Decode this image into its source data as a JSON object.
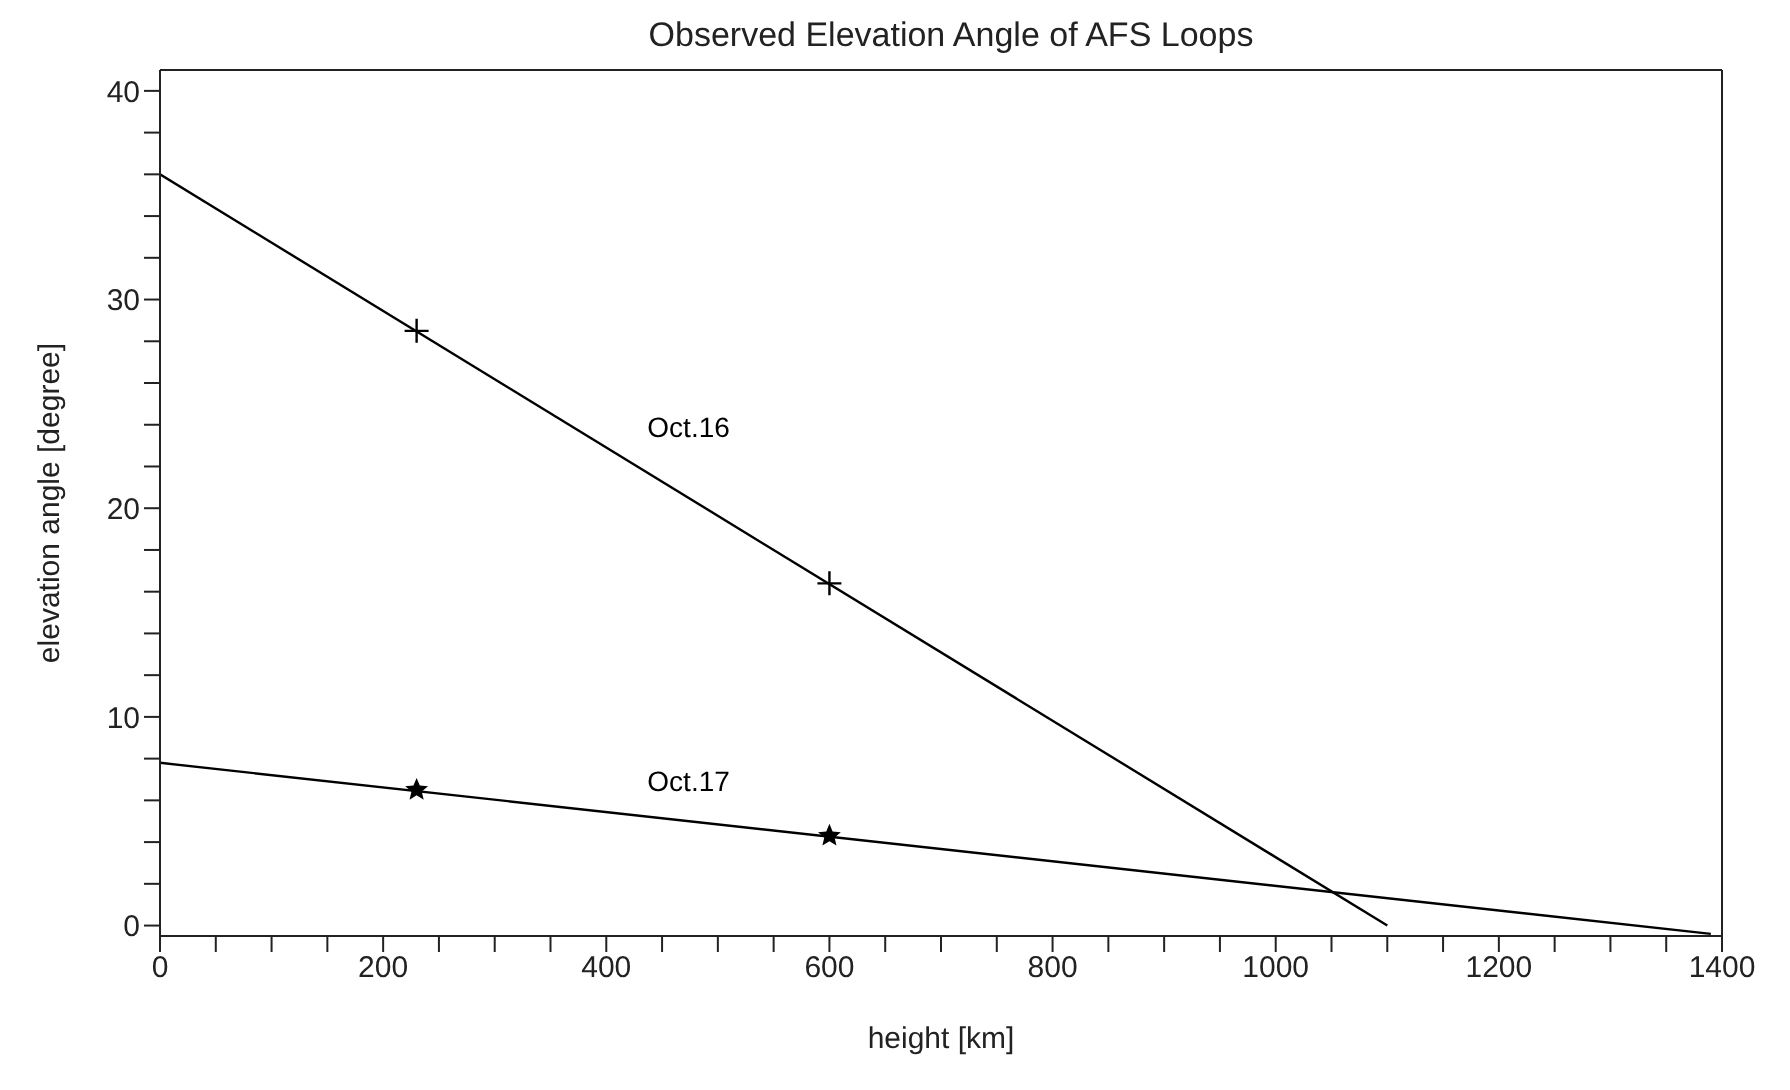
{
  "chart_data": {
    "type": "line",
    "title": "Observed Elevation Angle of AFS Loops",
    "xlabel": "height [km]",
    "ylabel": "elevation angle [degree]",
    "xlim": [
      0,
      1400
    ],
    "ylim": [
      -0.5,
      41
    ],
    "xticks": [
      0,
      {
        "value": 50,
        "label": null
      },
      {
        "value": 100,
        "label": null
      },
      {
        "value": 150,
        "label": null
      },
      200,
      {
        "value": 250,
        "label": null
      },
      {
        "value": 300,
        "label": null
      },
      {
        "value": 350,
        "label": null
      },
      400,
      {
        "value": 450,
        "label": null
      },
      {
        "value": 500,
        "label": null
      },
      {
        "value": 550,
        "label": null
      },
      600,
      {
        "value": 650,
        "label": null
      },
      {
        "value": 700,
        "label": null
      },
      {
        "value": 750,
        "label": null
      },
      800,
      {
        "value": 850,
        "label": null
      },
      {
        "value": 900,
        "label": null
      },
      {
        "value": 950,
        "label": null
      },
      1000,
      {
        "value": 1050,
        "label": null
      },
      {
        "value": 1100,
        "label": null
      },
      {
        "value": 1150,
        "label": null
      },
      1200,
      {
        "value": 1250,
        "label": null
      },
      {
        "value": 1300,
        "label": null
      },
      {
        "value": 1350,
        "label": null
      },
      1400
    ],
    "yticks": [
      0,
      {
        "value": 2,
        "label": null
      },
      {
        "value": 4,
        "label": null
      },
      {
        "value": 6,
        "label": null
      },
      {
        "value": 8,
        "label": null
      },
      10,
      {
        "value": 12,
        "label": null
      },
      {
        "value": 14,
        "label": null
      },
      {
        "value": 16,
        "label": null
      },
      {
        "value": 18,
        "label": null
      },
      20,
      {
        "value": 22,
        "label": null
      },
      {
        "value": 24,
        "label": null
      },
      {
        "value": 26,
        "label": null
      },
      {
        "value": 28,
        "label": null
      },
      30,
      {
        "value": 32,
        "label": null
      },
      {
        "value": 34,
        "label": null
      },
      {
        "value": 36,
        "label": null
      },
      {
        "value": 38,
        "label": null
      },
      40
    ],
    "series": [
      {
        "name": "Oct.16",
        "color": "#000000",
        "x": [
          0,
          1100
        ],
        "values": [
          36,
          0
        ],
        "marker": "none",
        "line_style": "solid"
      },
      {
        "type": "scatter",
        "color": "#000000",
        "x": [
          230,
          600
        ],
        "values": [
          28.5,
          16.4
        ],
        "marker": "cross"
      },
      {
        "name": "Oct.17",
        "color": "#000000",
        "x": [
          0,
          1390
        ],
        "values": [
          7.8,
          -0.4
        ],
        "marker": "none",
        "line_style": "solid"
      },
      {
        "type": "scatter",
        "color": "#000000",
        "x": [
          230,
          600
        ],
        "values": [
          6.5,
          4.3
        ],
        "marker": "star"
      }
    ]
  }
}
